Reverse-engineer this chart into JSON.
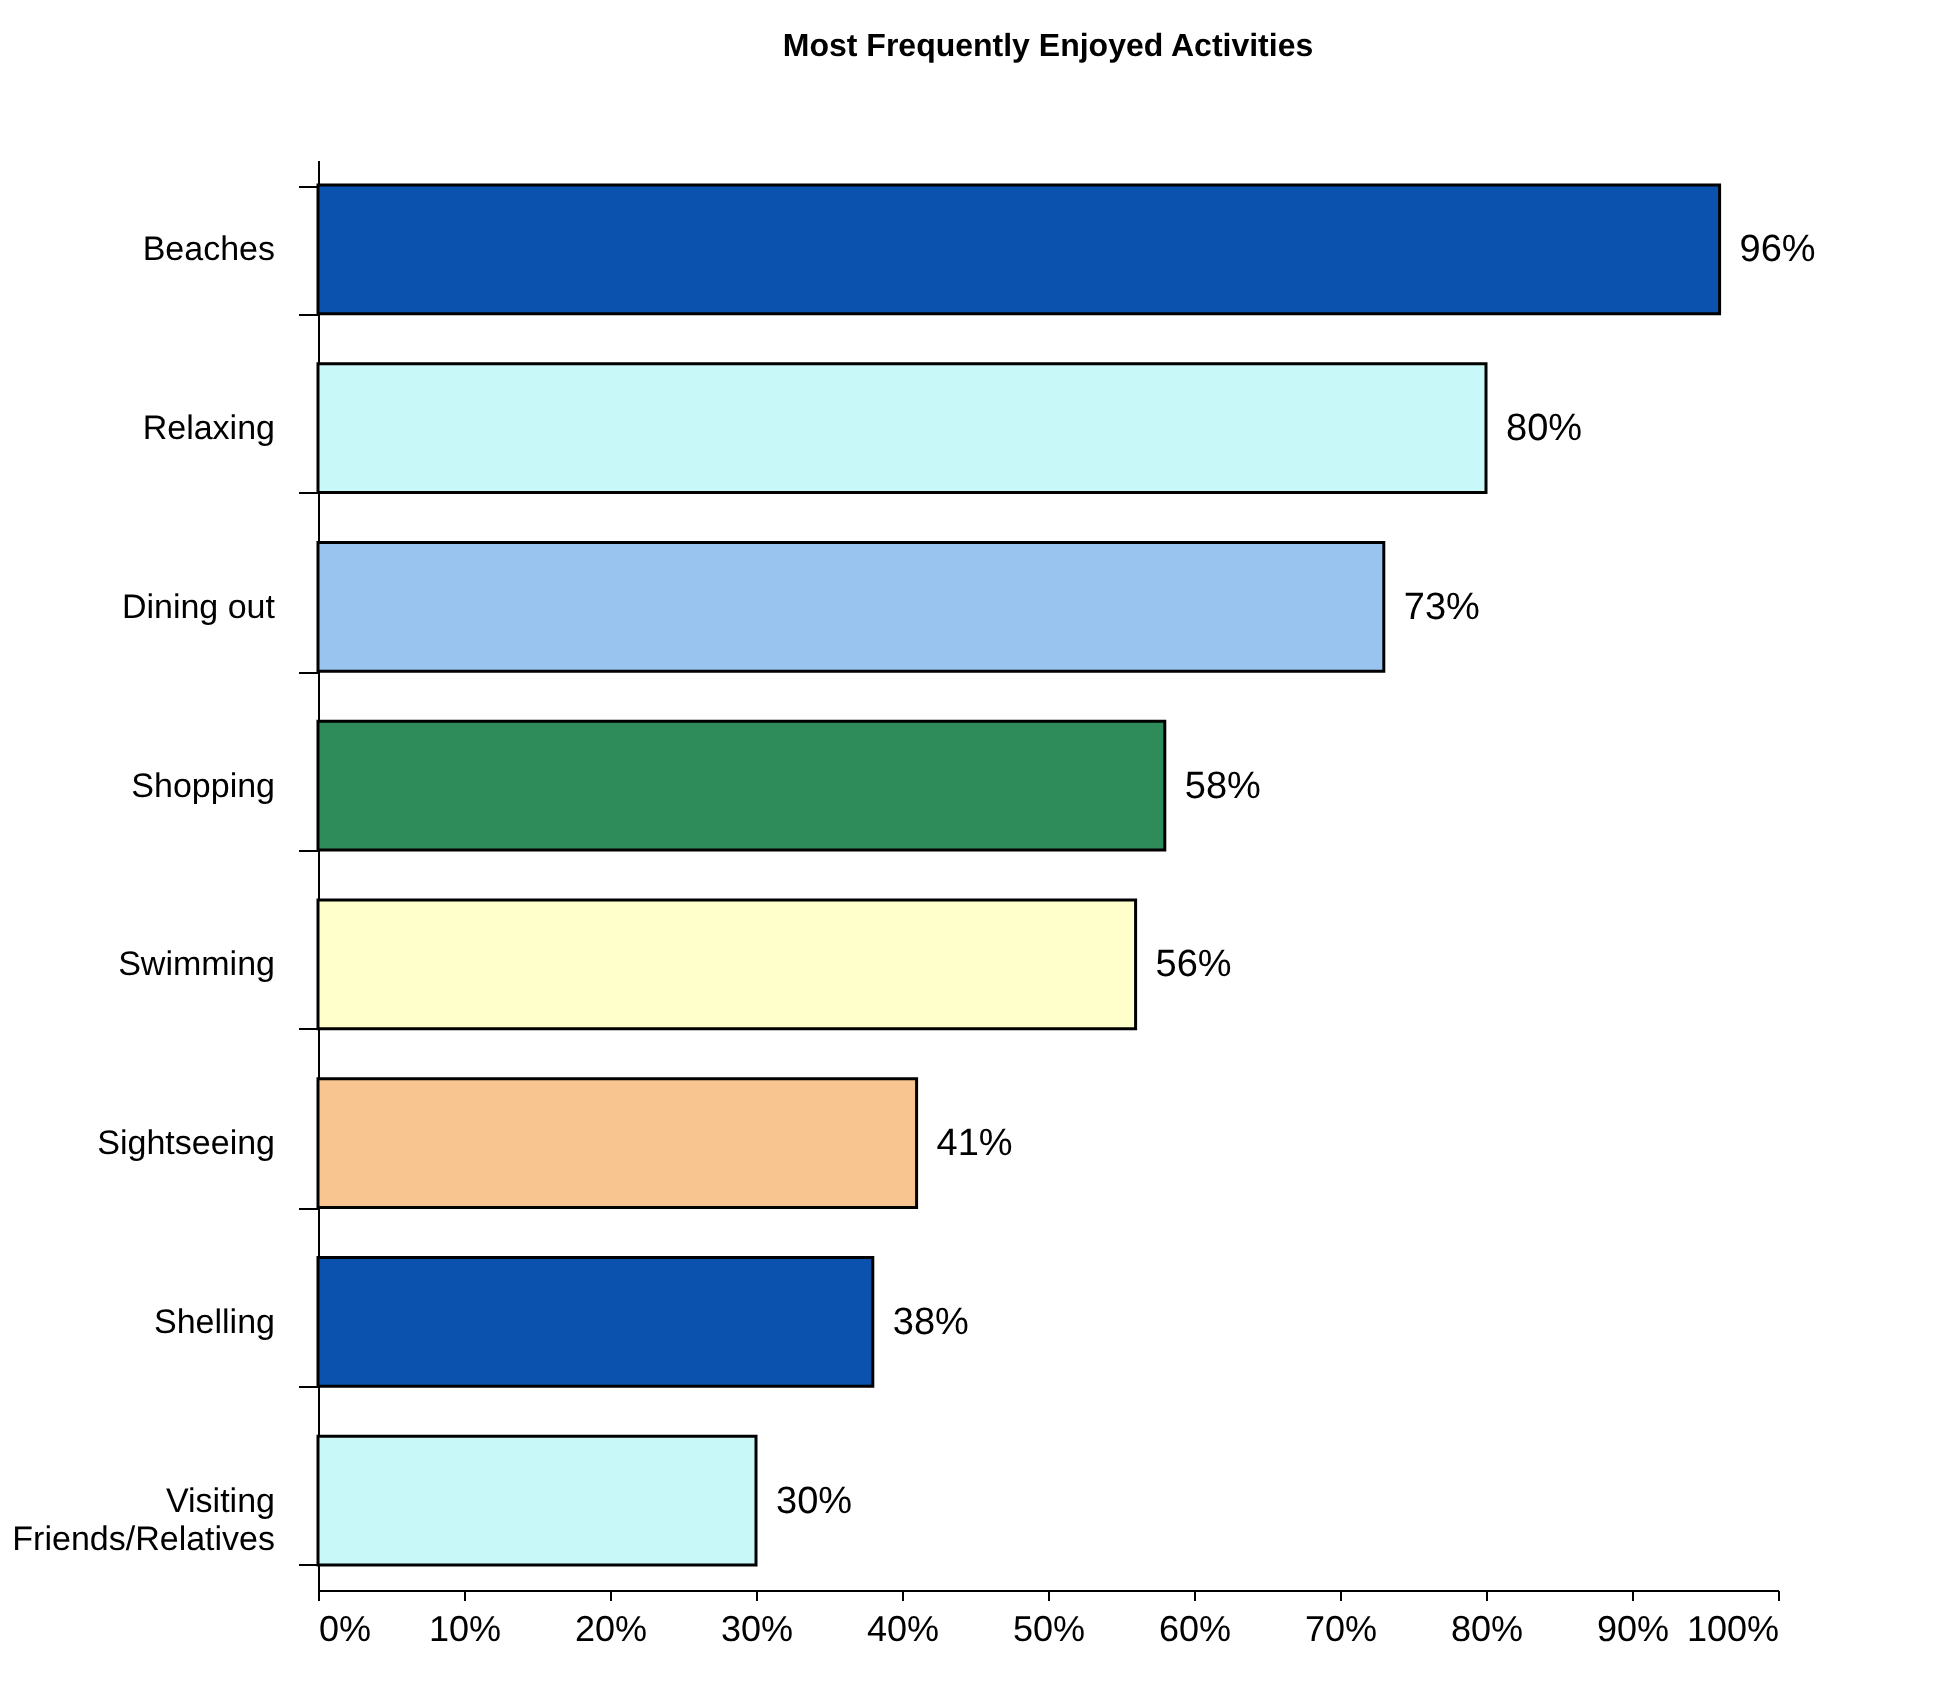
{
  "chart_data": {
    "type": "bar",
    "orientation": "horizontal",
    "title": "Most Frequently Enjoyed Activities",
    "categories": [
      "Beaches",
      "Relaxing",
      "Dining out",
      "Shopping",
      "Swimming",
      "Sightseeing",
      "Shelling",
      "Visiting\nFriends/Relatives"
    ],
    "values": [
      96,
      80,
      73,
      58,
      56,
      41,
      38,
      30
    ],
    "value_labels": [
      "96%",
      "80%",
      "73%",
      "58%",
      "56%",
      "41%",
      "38%",
      "30%"
    ],
    "colors": [
      "#0a52ad",
      "#c8f8f8",
      "#99c4f0",
      "#2e8b5a",
      "#ffffcc",
      "#f8c490",
      "#0a52ad",
      "#c8f8f8"
    ],
    "xlim": [
      0,
      100
    ],
    "xticks": [
      {
        "value": 0,
        "label": "0%"
      },
      {
        "value": 10,
        "label": "10%"
      },
      {
        "value": 20,
        "label": "20%"
      },
      {
        "value": 30,
        "label": "30%"
      },
      {
        "value": 40,
        "label": "40%"
      },
      {
        "value": 50,
        "label": "50%"
      },
      {
        "value": 60,
        "label": "60%"
      },
      {
        "value": 70,
        "label": "70%"
      },
      {
        "value": 80,
        "label": "80%"
      },
      {
        "value": 90,
        "label": "90%"
      },
      {
        "value": 100,
        "label": "100%"
      }
    ],
    "grid": false,
    "legend": false
  }
}
